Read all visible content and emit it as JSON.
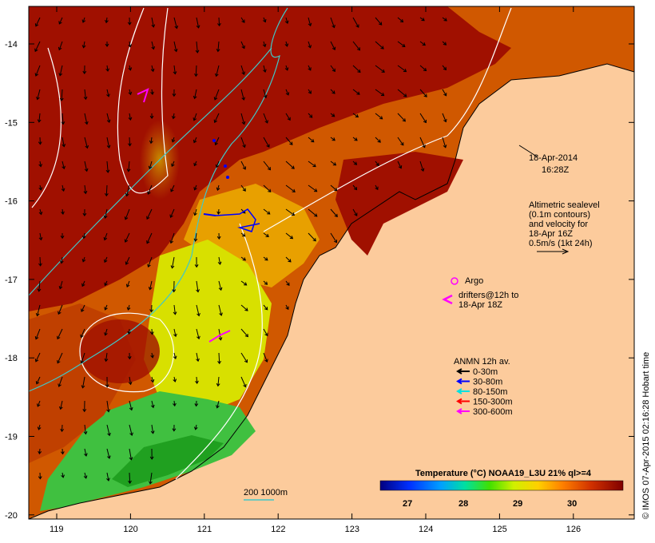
{
  "map": {
    "date": "18-Apr-2014",
    "time": "16:28Z",
    "altimetry_lines": [
      "Altimetric sealevel",
      "(0.1m contours)",
      "and velocity for",
      "18-Apr 16Z",
      "0.5m/s (1kt 24h)"
    ],
    "argo_label": "Argo",
    "drifters_lines": [
      "drifters@12h to",
      "18-Apr 18Z"
    ],
    "anmn_title": "ANMN 12h av.",
    "anmn_items": [
      {
        "label": "0-30m",
        "color": "#000000"
      },
      {
        "label": "30-80m",
        "color": "#0000ff"
      },
      {
        "label": "80-150m",
        "color": "#00e0e0"
      },
      {
        "label": "150-300m",
        "color": "#ff0000"
      },
      {
        "label": "300-600m",
        "color": "#ff00ff"
      }
    ],
    "depth_label": "200  1000m",
    "colorbar": {
      "title": "Temperature (°C) NOAA19_L3U 21% ql>=4",
      "ticks": [
        "27",
        "28",
        "29",
        "30"
      ]
    },
    "credit": "© IMOS 07-Apr-2015 02:16:28 Hobart time",
    "lon_ticks": [
      "119",
      "120",
      "121",
      "122",
      "123",
      "124",
      "125",
      "126"
    ],
    "lat_ticks": [
      "-14",
      "-15",
      "-16",
      "-17",
      "-18",
      "-19",
      "-20"
    ],
    "colors": {
      "land": "#fccb9c",
      "hot": "#a01000",
      "warm": "#d05800",
      "mid": "#e8a000",
      "cool": "#d8e000",
      "cold": "#40c040",
      "contour": "#ffffff",
      "isobath": "#40c8c8"
    }
  }
}
